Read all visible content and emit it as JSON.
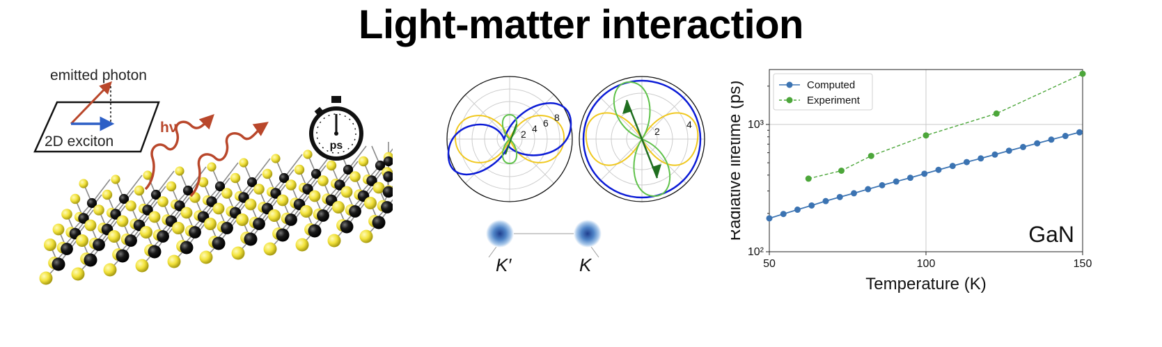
{
  "title": "Light-matter interaction",
  "illustration": {
    "emitted_label": "emitted photon",
    "exciton_label": "2D exciton",
    "hv_label": "hν",
    "stopwatch_label": "ps"
  },
  "polar": {
    "left_ticks": [
      "2",
      "4",
      "6",
      "8"
    ],
    "right_ticks": [
      "2",
      "4"
    ],
    "valley_labels": [
      "K′",
      "K"
    ]
  },
  "colors": {
    "computed": "#3b73b2",
    "experiment": "#4ca63a",
    "photon": "#b9472b",
    "polar_blue": "#0b1bd6",
    "polar_yellow": "#f0c81e",
    "polar_green": "#5fc24a"
  },
  "chart_data": {
    "type": "line",
    "xlabel": "Temperature (K)",
    "ylabel": "Radiative lifetime (ps)",
    "x_scale": "linear",
    "y_scale": "log",
    "xlim": [
      50,
      150
    ],
    "ylim": [
      100,
      2700
    ],
    "xticks": [
      "50",
      "100",
      "150"
    ],
    "yticks": [
      "10²",
      "10³"
    ],
    "grid": true,
    "legend_position": "top-left",
    "annotation": "GaN",
    "series": [
      {
        "name": "Computed",
        "style": "solid-circle",
        "x": [
          50,
          54.5,
          59,
          63.5,
          68,
          72.5,
          77,
          81.5,
          86,
          90.5,
          95,
          99.5,
          104,
          108.5,
          113,
          117.5,
          122,
          126.5,
          131,
          135.5,
          140,
          144.5,
          149
        ],
        "y": [
          183,
          198,
          214,
          231,
          250,
          269,
          288,
          310,
          333,
          356,
          381,
          410,
          440,
          472,
          506,
          541,
          580,
          622,
          665,
          711,
          760,
          812,
          867
        ]
      },
      {
        "name": "Experiment",
        "style": "dashed-circle",
        "x": [
          62.5,
          73,
          82.5,
          100,
          122.5,
          150
        ],
        "y": [
          375,
          433,
          566,
          820,
          1218,
          2500
        ]
      }
    ]
  }
}
